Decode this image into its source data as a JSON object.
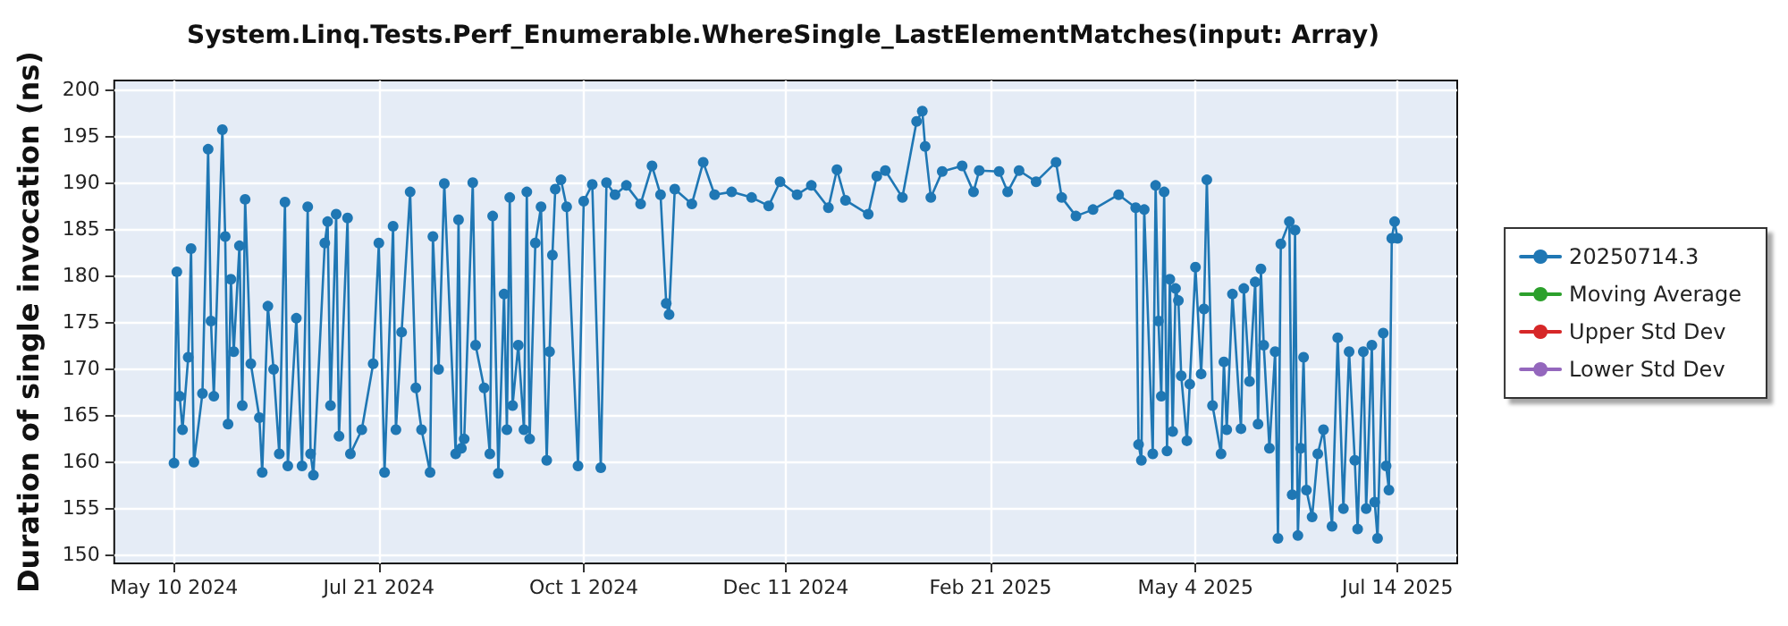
{
  "chart_data": {
    "type": "line",
    "title": "System.Linq.Tests.Perf_Enumerable.WhereSingle_LastElementMatches(input: Array)",
    "ylabel": "Duration of single invocation (ns)",
    "series": [
      {
        "name": "20250714.3",
        "color": "#1f77b4",
        "x": [
          "2024-05-10",
          "2024-05-11",
          "2024-05-12",
          "2024-05-13",
          "2024-05-15",
          "2024-05-16",
          "2024-05-17",
          "2024-05-20",
          "2024-05-22",
          "2024-05-23",
          "2024-05-24",
          "2024-05-27",
          "2024-05-28",
          "2024-05-29",
          "2024-05-30",
          "2024-05-31",
          "2024-06-02",
          "2024-06-03",
          "2024-06-04",
          "2024-06-06",
          "2024-06-09",
          "2024-06-10",
          "2024-06-12",
          "2024-06-14",
          "2024-06-16",
          "2024-06-18",
          "2024-06-19",
          "2024-06-22",
          "2024-06-24",
          "2024-06-26",
          "2024-06-27",
          "2024-06-28",
          "2024-07-02",
          "2024-07-03",
          "2024-07-04",
          "2024-07-06",
          "2024-07-07",
          "2024-07-10",
          "2024-07-11",
          "2024-07-15",
          "2024-07-19",
          "2024-07-21",
          "2024-07-23",
          "2024-07-26",
          "2024-07-27",
          "2024-07-29",
          "2024-08-01",
          "2024-08-03",
          "2024-08-05",
          "2024-08-08",
          "2024-08-09",
          "2024-08-11",
          "2024-08-13",
          "2024-08-17",
          "2024-08-18",
          "2024-08-19",
          "2024-08-20",
          "2024-08-23",
          "2024-08-24",
          "2024-08-27",
          "2024-08-29",
          "2024-08-30",
          "2024-09-01",
          "2024-09-03",
          "2024-09-04",
          "2024-09-05",
          "2024-09-06",
          "2024-09-08",
          "2024-09-10",
          "2024-09-11",
          "2024-09-12",
          "2024-09-14",
          "2024-09-16",
          "2024-09-18",
          "2024-09-19",
          "2024-09-20",
          "2024-09-21",
          "2024-09-23",
          "2024-09-25",
          "2024-09-29",
          "2024-10-01",
          "2024-10-04",
          "2024-10-07",
          "2024-10-09",
          "2024-10-12",
          "2024-10-16",
          "2024-10-21",
          "2024-10-25",
          "2024-10-28",
          "2024-10-30",
          "2024-10-31",
          "2024-11-02",
          "2024-11-08",
          "2024-11-12",
          "2024-11-16",
          "2024-11-22",
          "2024-11-29",
          "2024-12-05",
          "2024-12-09",
          "2024-12-15",
          "2024-12-20",
          "2024-12-26",
          "2024-12-29",
          "2025-01-01",
          "2025-01-09",
          "2025-01-12",
          "2025-01-15",
          "2025-01-21",
          "2025-01-26",
          "2025-01-28",
          "2025-01-29",
          "2025-01-31",
          "2025-02-04",
          "2025-02-11",
          "2025-02-15",
          "2025-02-17",
          "2025-02-24",
          "2025-02-27",
          "2025-03-03",
          "2025-03-09",
          "2025-03-16",
          "2025-03-18",
          "2025-03-23",
          "2025-03-29",
          "2025-04-07",
          "2025-04-13",
          "2025-04-14",
          "2025-04-15",
          "2025-04-16",
          "2025-04-19",
          "2025-04-20",
          "2025-04-21",
          "2025-04-22",
          "2025-04-23",
          "2025-04-24",
          "2025-04-25",
          "2025-04-26",
          "2025-04-27",
          "2025-04-28",
          "2025-04-29",
          "2025-05-01",
          "2025-05-02",
          "2025-05-04",
          "2025-05-06",
          "2025-05-07",
          "2025-05-08",
          "2025-05-10",
          "2025-05-13",
          "2025-05-14",
          "2025-05-15",
          "2025-05-17",
          "2025-05-20",
          "2025-05-21",
          "2025-05-23",
          "2025-05-25",
          "2025-05-26",
          "2025-05-27",
          "2025-05-28",
          "2025-05-30",
          "2025-06-01",
          "2025-06-02",
          "2025-06-03",
          "2025-06-06",
          "2025-06-07",
          "2025-06-08",
          "2025-06-09",
          "2025-06-10",
          "2025-06-11",
          "2025-06-12",
          "2025-06-14",
          "2025-06-16",
          "2025-06-18",
          "2025-06-21",
          "2025-06-23",
          "2025-06-25",
          "2025-06-27",
          "2025-06-29",
          "2025-06-30",
          "2025-07-02",
          "2025-07-03",
          "2025-07-05",
          "2025-07-06",
          "2025-07-07",
          "2025-07-09",
          "2025-07-10",
          "2025-07-11",
          "2025-07-12",
          "2025-07-13",
          "2025-07-14"
        ],
        "values": [
          159.8,
          180.4,
          167,
          163.4,
          171.2,
          182.9,
          159.9,
          167.3,
          193.6,
          175.1,
          167,
          195.7,
          184.2,
          164,
          179.6,
          171.8,
          183.2,
          166,
          188.2,
          170.5,
          164.7,
          158.8,
          176.7,
          169.9,
          160.8,
          187.9,
          159.5,
          175.4,
          159.5,
          187.4,
          160.8,
          158.5,
          183.5,
          185.8,
          166,
          186.6,
          162.7,
          186.2,
          160.8,
          163.4,
          170.5,
          183.5,
          158.8,
          185.3,
          163.4,
          173.9,
          189,
          167.9,
          163.4,
          158.8,
          184.2,
          169.9,
          189.9,
          160.8,
          186,
          161.4,
          162.4,
          190,
          172.5,
          167.9,
          160.8,
          186.4,
          158.7,
          178,
          163.4,
          188.4,
          166,
          172.5,
          163.4,
          189,
          162.4,
          183.5,
          187.4,
          160.1,
          171.8,
          182.2,
          189.3,
          190.3,
          187.4,
          159.5,
          188,
          189.8,
          159.3,
          190,
          188.7,
          189.7,
          187.7,
          191.8,
          188.7,
          177,
          175.8,
          189.3,
          187.7,
          192.2,
          188.7,
          189,
          188.4,
          187.5,
          190.1,
          188.7,
          189.7,
          187.3,
          191.4,
          188.1,
          186.6,
          190.7,
          191.3,
          188.4,
          196.6,
          197.7,
          193.9,
          188.4,
          191.2,
          191.8,
          189,
          191.3,
          191.2,
          189,
          191.3,
          190.1,
          192.2,
          188.4,
          186.4,
          187.1,
          188.7,
          187.3,
          161.8,
          160.1,
          187.1,
          160.8,
          189.7,
          175.1,
          167,
          189,
          161.1,
          179.6,
          163.2,
          178.6,
          177.3,
          169.2,
          162.2,
          168.3,
          180.9,
          169.4,
          176.4,
          190.3,
          166,
          160.8,
          170.7,
          163.4,
          178,
          163.5,
          178.6,
          168.6,
          179.3,
          164,
          180.7,
          172.5,
          161.4,
          171.8,
          151.7,
          183.4,
          185.8,
          156.4,
          184.9,
          152,
          161.4,
          171.2,
          156.9,
          154,
          160.8,
          163.4,
          153,
          173.3,
          154.9,
          171.8,
          160.1,
          152.7,
          171.8,
          154.9,
          172.5,
          155.6,
          151.7,
          173.8,
          159.5,
          156.9,
          184,
          185.8,
          184
        ]
      },
      {
        "name": "Moving Average",
        "color": "#2ca02c"
      },
      {
        "name": "Upper Std Dev",
        "color": "#d62728"
      },
      {
        "name": "Lower Std Dev",
        "color": "#9467bd"
      }
    ],
    "xlim": [
      "2024-04-19",
      "2025-08-04"
    ],
    "xticks": [
      {
        "value": "2024-05-10",
        "label": "May 10 2024"
      },
      {
        "value": "2024-07-21",
        "label": "Jul 21 2024"
      },
      {
        "value": "2024-10-01",
        "label": "Oct 1 2024"
      },
      {
        "value": "2024-12-11",
        "label": "Dec 11 2024"
      },
      {
        "value": "2025-02-21",
        "label": "Feb 21 2025"
      },
      {
        "value": "2025-05-04",
        "label": "May 4 2025"
      },
      {
        "value": "2025-07-14",
        "label": "Jul 14 2025"
      }
    ],
    "ylim": [
      149,
      201
    ],
    "yticks": [
      150,
      155,
      160,
      165,
      170,
      175,
      180,
      185,
      190,
      195,
      200
    ],
    "grid": true,
    "legend": "right",
    "marker": "circle",
    "line_style": "solid"
  }
}
